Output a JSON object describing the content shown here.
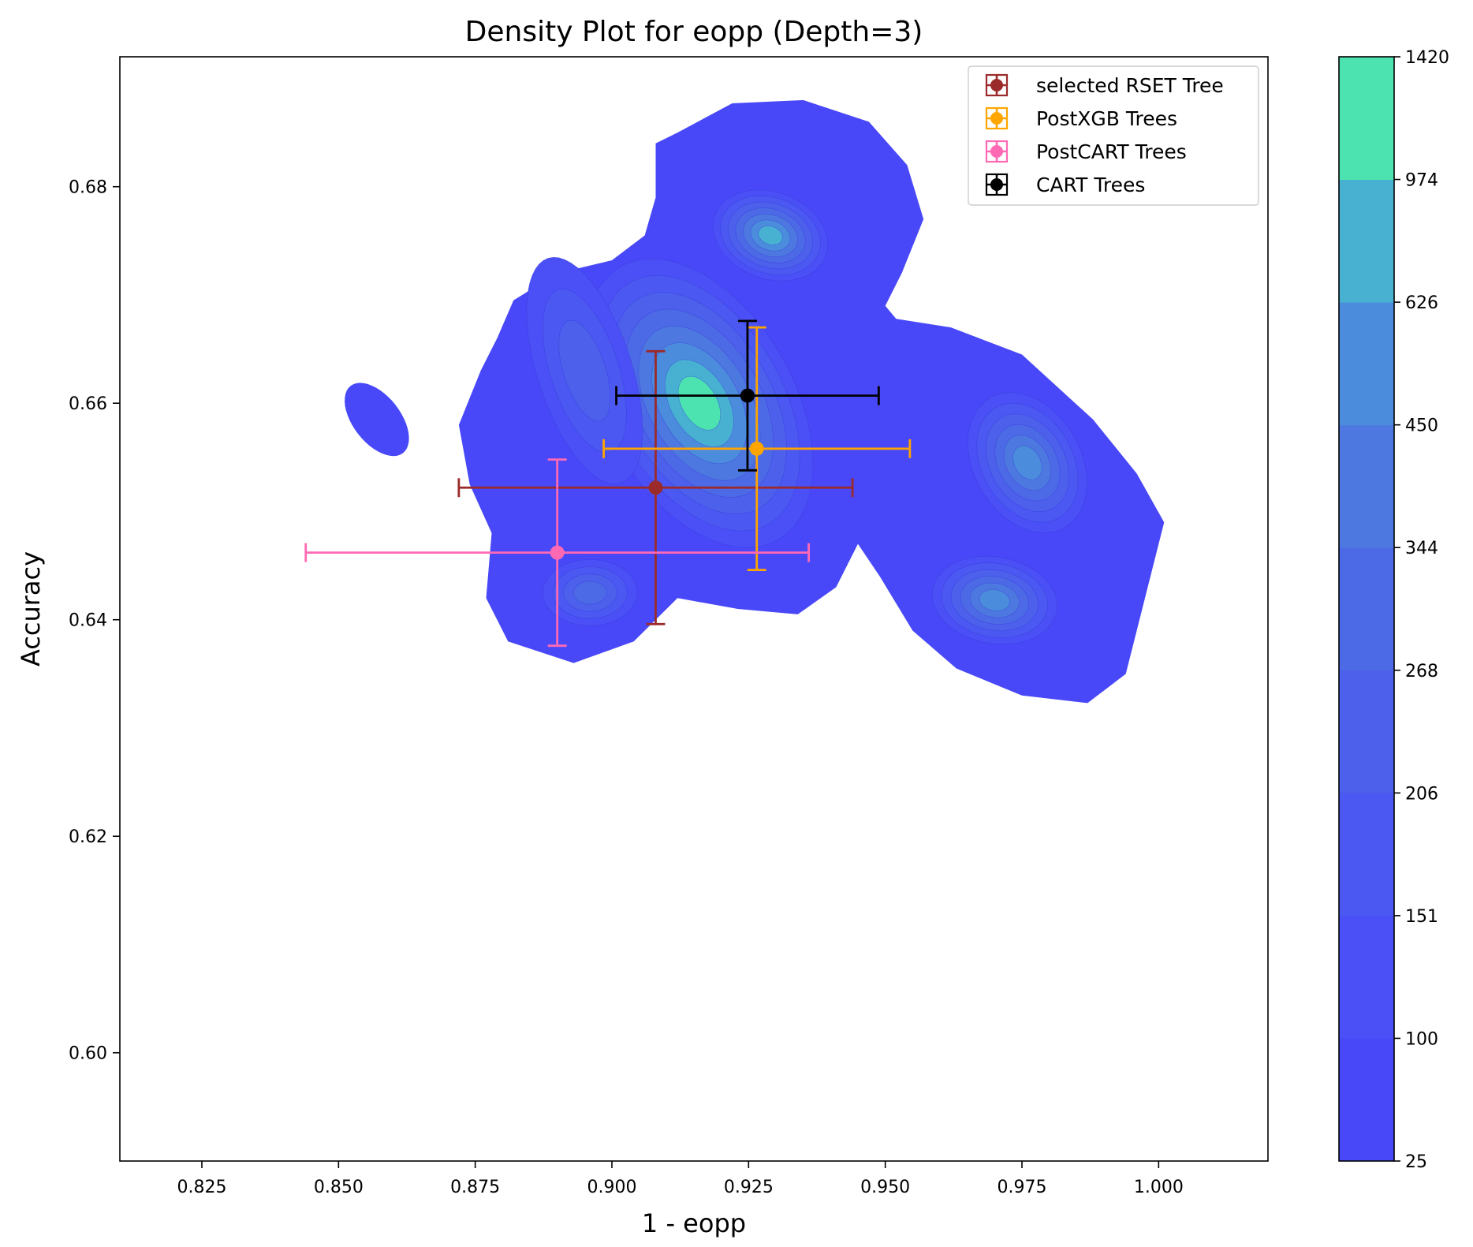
{
  "chart_data": {
    "type": "scatter",
    "title": "Density Plot for eopp (Depth=3)",
    "xlabel": "1 - eopp",
    "ylabel": "Accuracy",
    "xlim": [
      0.81,
      1.02
    ],
    "ylim": [
      0.59,
      0.692
    ],
    "xticks": [
      "0.825",
      "0.850",
      "0.875",
      "0.900",
      "0.925",
      "0.950",
      "0.975",
      "1.000"
    ],
    "yticks": [
      "0.60",
      "0.62",
      "0.64",
      "0.66",
      "0.68"
    ],
    "grid": false,
    "legend_position": "top-right",
    "series": [
      {
        "name": "selected RSET Tree",
        "color": "#9b2a2a",
        "x": 0.908,
        "y": 0.6522,
        "xerr": 0.036,
        "yerr": 0.0126
      },
      {
        "name": "PostXGB Trees",
        "color": "#ffa500",
        "x": 0.9265,
        "y": 0.6558,
        "xerr": 0.028,
        "yerr": 0.0112
      },
      {
        "name": "PostCART Trees",
        "color": "#ff69b4",
        "x": 0.89,
        "y": 0.6462,
        "xerr": 0.046,
        "yerr": 0.0086
      },
      {
        "name": "CART Trees",
        "color": "#000000",
        "x": 0.9248,
        "y": 0.6607,
        "xerr": 0.024,
        "yerr": 0.0069
      }
    ],
    "density": {
      "type": "kde_contour",
      "levels": [
        25,
        100,
        151,
        206,
        268,
        344,
        450,
        626,
        974,
        1420
      ],
      "colorbar_labels": [
        "25",
        "100",
        "151",
        "206",
        "268",
        "344",
        "450",
        "626",
        "974",
        "1420"
      ],
      "colors": [
        "#4848f8",
        "#4a50f5",
        "#4b58f1",
        "#4c60ec",
        "#4d6ae6",
        "#4d78e0",
        "#4b8ddc",
        "#48b0d1",
        "#4ce3b1"
      ],
      "peaks": [
        {
          "x": 0.917,
          "y": 0.6605,
          "level": 1420
        },
        {
          "x": 0.93,
          "y": 0.6762,
          "level": 974
        },
        {
          "x": 0.976,
          "y": 0.6545,
          "level": 626
        },
        {
          "x": 0.97,
          "y": 0.6415,
          "level": 626
        },
        {
          "x": 0.896,
          "y": 0.6425,
          "level": 450
        },
        {
          "x": 0.857,
          "y": 0.6585,
          "level": 100
        }
      ]
    }
  }
}
